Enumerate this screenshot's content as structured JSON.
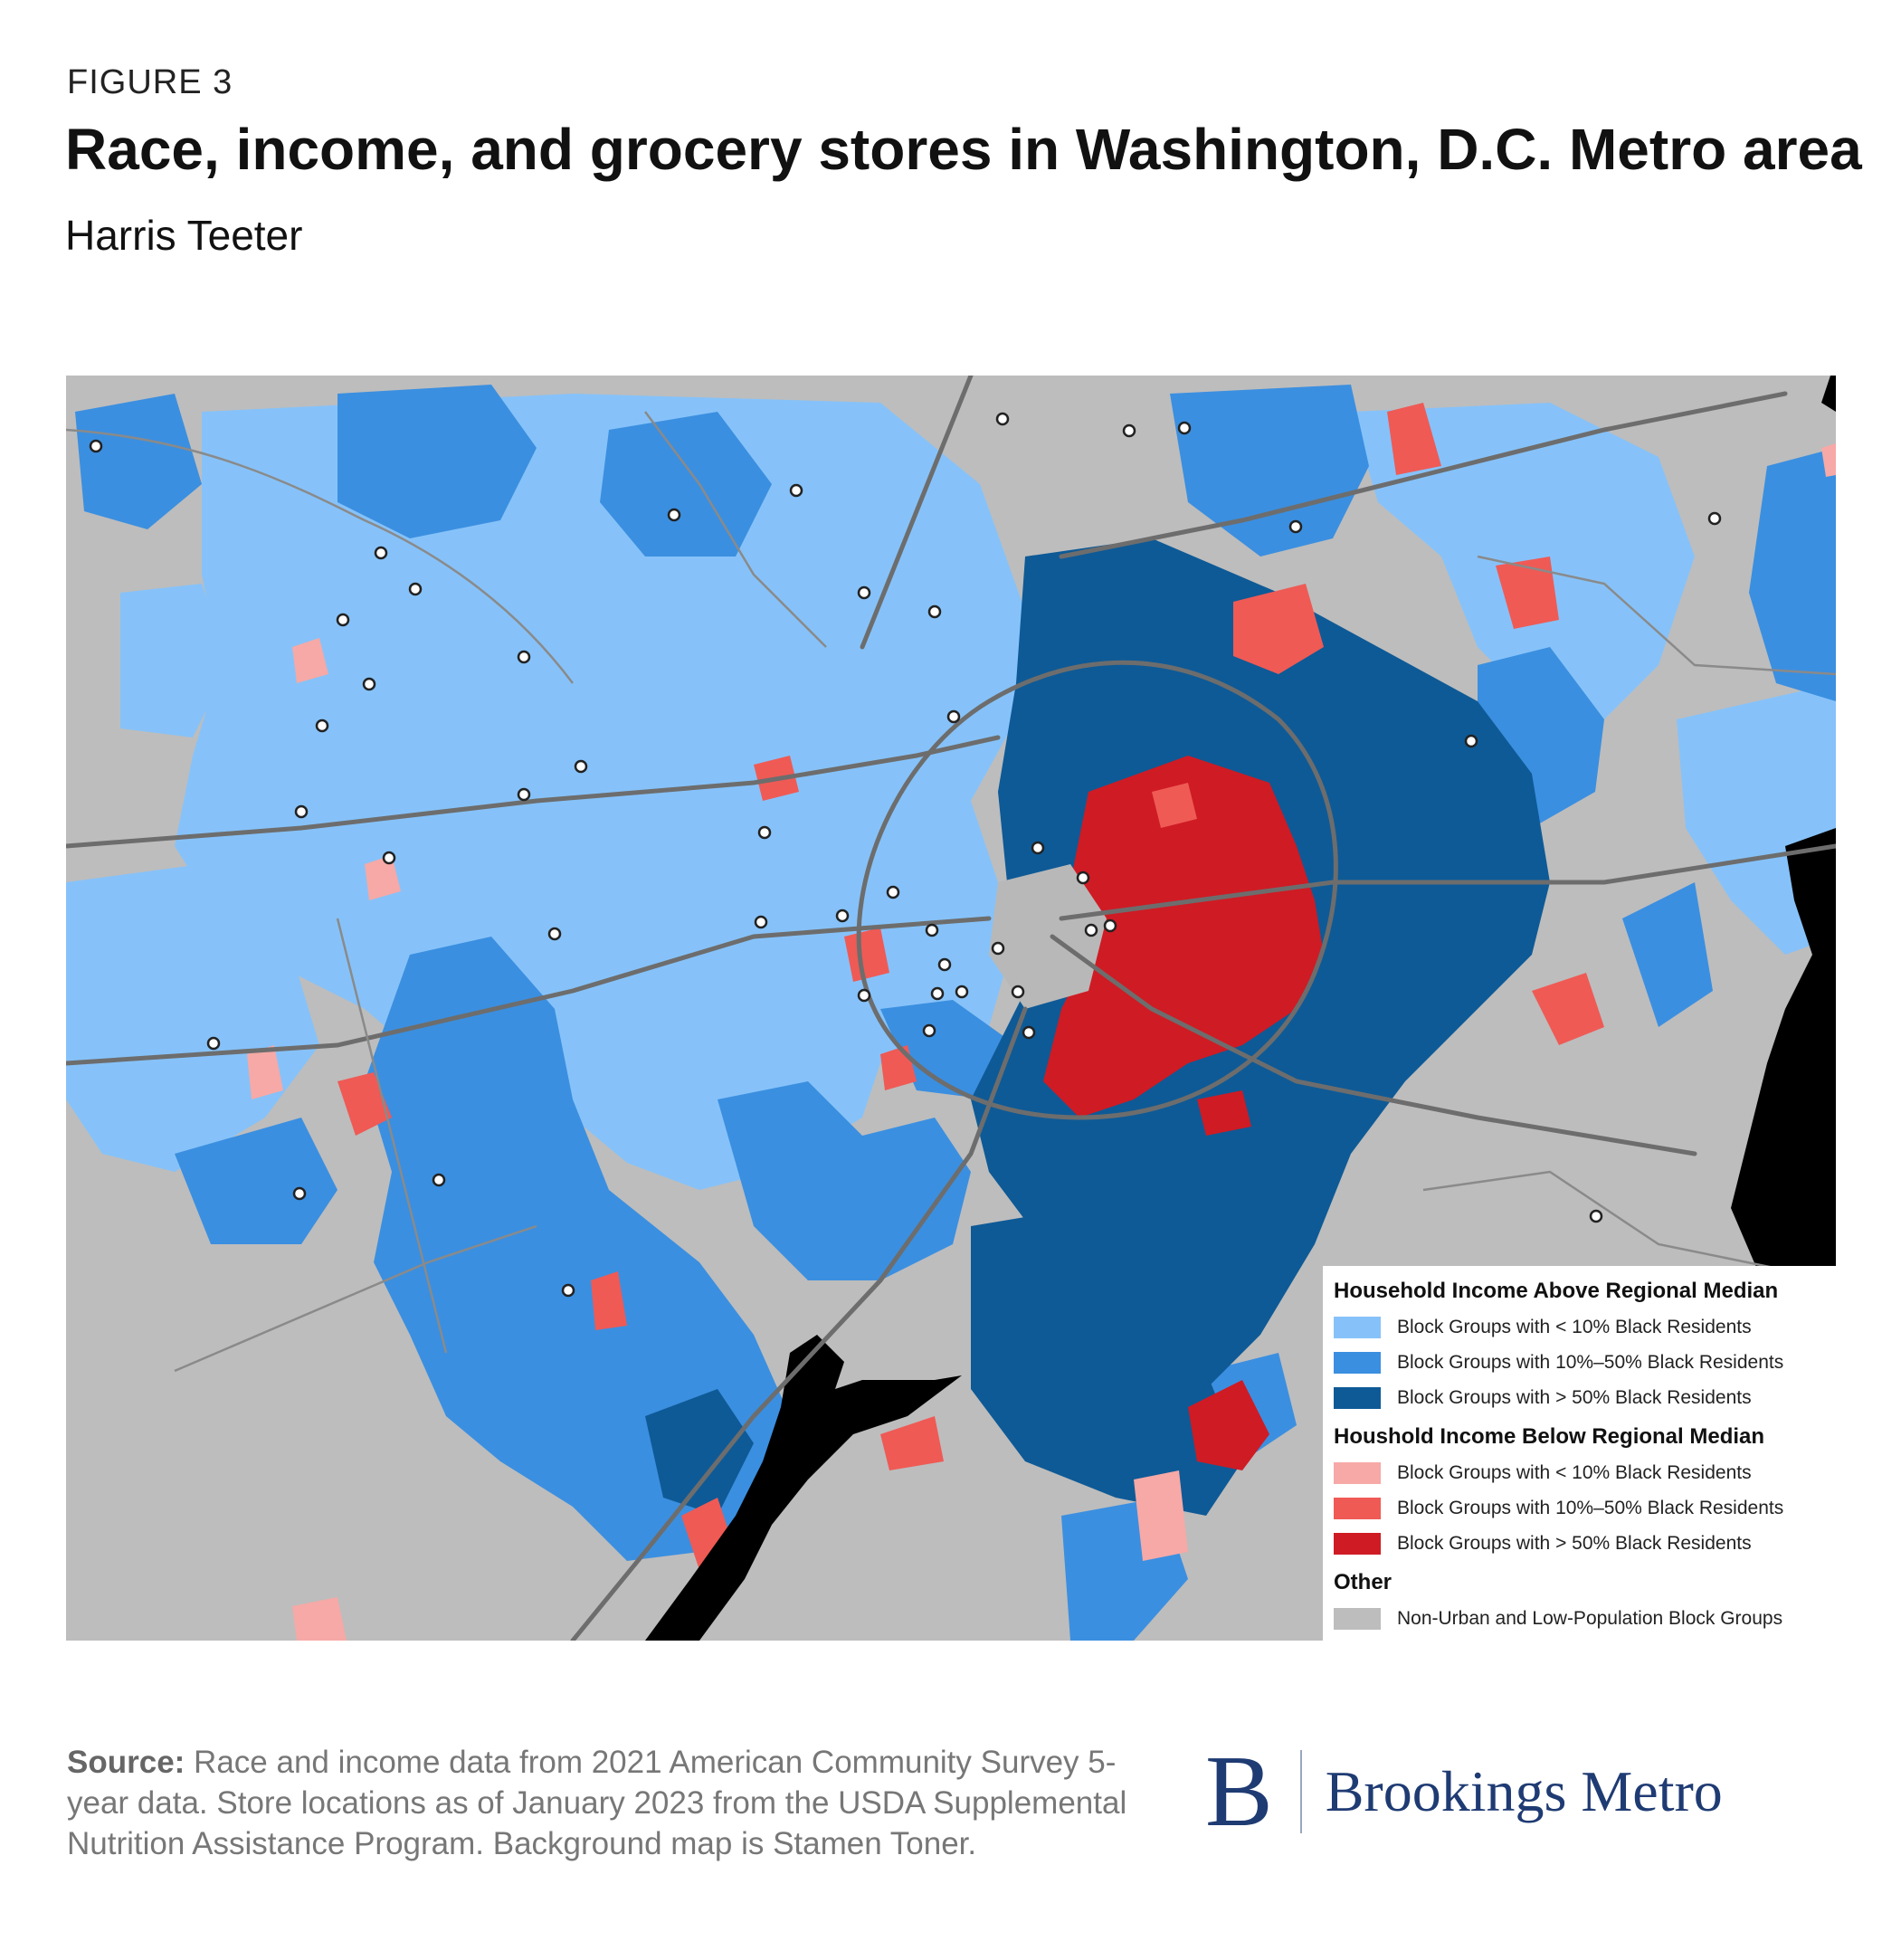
{
  "header": {
    "figure_label": "FIGURE 3",
    "title": "Race, income, and grocery stores in Washington, D.C. Metro area",
    "subtitle": "Harris Teeter"
  },
  "legend": {
    "group_above": {
      "heading": "Household Income Above Regional Median",
      "items": [
        {
          "label": "Block Groups with < 10% Black Residents",
          "color": "#86c2f9"
        },
        {
          "label": "Block Groups with 10%–50% Black Residents",
          "color": "#3b8fe0"
        },
        {
          "label": "Block Groups with > 50% Black Residents",
          "color": "#0e5a96"
        }
      ]
    },
    "group_below": {
      "heading": "Houshold Income Below Regional Median",
      "items": [
        {
          "label": "Block Groups with < 10% Black Residents",
          "color": "#f6a9a6"
        },
        {
          "label": "Block Groups with 10%–50% Black Residents",
          "color": "#ef5a55"
        },
        {
          "label": "Block Groups with > 50% Black Residents",
          "color": "#cf1b24"
        }
      ]
    },
    "group_other": {
      "heading": "Other",
      "items": [
        {
          "label": "Non-Urban and Low-Population Block Groups",
          "color": "#bdbdbd"
        }
      ]
    }
  },
  "footer": {
    "source_label": "Source:",
    "source_text": "Race and income data from 2021 American Community Survey 5-year data. Store locations as of January 2023 from the USDA Supplemental Nutrition Assistance Program. Background map is Stamen Toner.",
    "brand_mark": "B",
    "brand_name": "Brookings Metro"
  },
  "map": {
    "water_color": "#000000",
    "store_marker_color": "#ffffff",
    "store_marker_count": 44
  }
}
